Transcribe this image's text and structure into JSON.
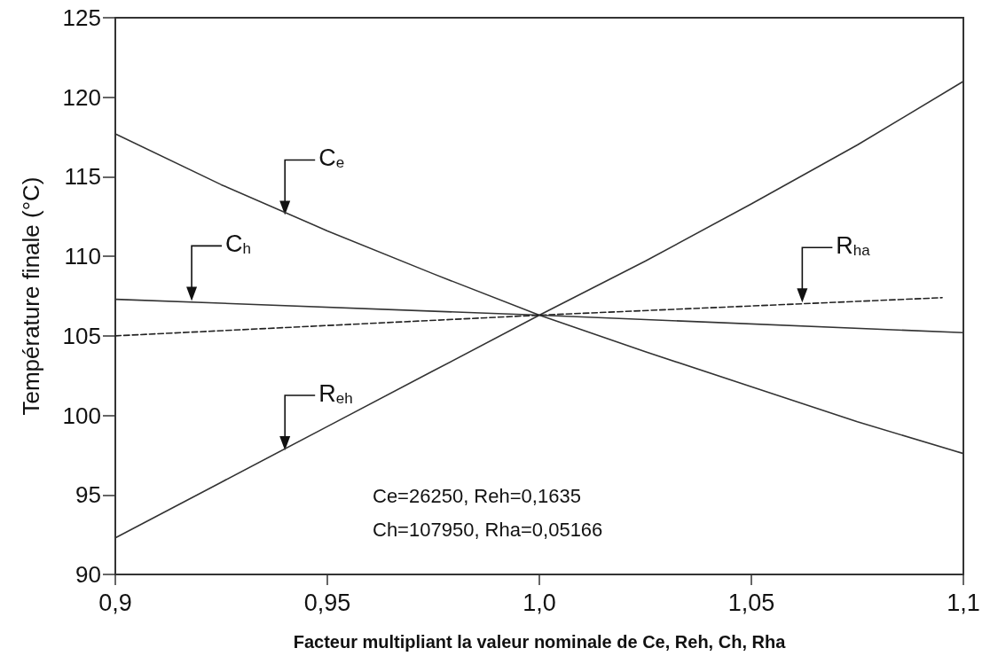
{
  "chart_data": {
    "type": "line",
    "xlabel": "Facteur multipliant la valeur nominale de Ce, Reh, Ch, Rha",
    "ylabel": "Température finale (°C)",
    "xlim": [
      0.9,
      1.1
    ],
    "xticks": [
      {
        "value": 0.9,
        "label": "0,9"
      },
      {
        "value": 0.95,
        "label": "0,95"
      },
      {
        "value": 1.0,
        "label": "1,0"
      },
      {
        "value": 1.05,
        "label": "1,05"
      },
      {
        "value": 1.1,
        "label": "1,1"
      }
    ],
    "ylim": [
      90,
      125
    ],
    "yticks": [
      90,
      95,
      100,
      105,
      110,
      115,
      120,
      125
    ],
    "grid": false,
    "marker": "none",
    "series": [
      {
        "color": "#333333",
        "line_style": "solid",
        "x": [
          0.9,
          0.925,
          0.95,
          0.975,
          1.0,
          1.025,
          1.05,
          1.075,
          1.1
        ],
        "values": [
          117.7,
          114.5,
          111.6,
          108.9,
          106.3,
          104.0,
          101.8,
          99.6,
          97.6
        ]
      },
      {
        "color": "#333333",
        "line_style": "solid",
        "x": [
          0.9,
          0.925,
          0.95,
          0.975,
          1.0,
          1.025,
          1.05,
          1.075,
          1.1
        ],
        "values": [
          92.3,
          95.8,
          99.3,
          102.8,
          106.3,
          109.7,
          113.3,
          117.0,
          121.0
        ]
      },
      {
        "color": "#333333",
        "line_style": "solid",
        "x": [
          0.9,
          1.0,
          1.1
        ],
        "values": [
          107.3,
          106.3,
          105.2
        ]
      },
      {
        "color": "#222222",
        "line_style": "dashed",
        "x": [
          0.9,
          1.0,
          1.095
        ],
        "values": [
          105.0,
          106.3,
          107.4
        ]
      }
    ],
    "annotations": [
      {
        "text": "C$_{e}$",
        "x": 0.94,
        "y": 112.6
      },
      {
        "text": "R$_{eh}$",
        "x": 0.94,
        "y": 97.8
      },
      {
        "text": "C$_{h}$",
        "x": 0.918,
        "y": 107.2
      },
      {
        "text": "R$_{ha}$",
        "x": 1.062,
        "y": 107.1
      },
      "Ce=26250, Reh=0,1635",
      "Ch=107950, Rha=0,05166"
    ]
  }
}
